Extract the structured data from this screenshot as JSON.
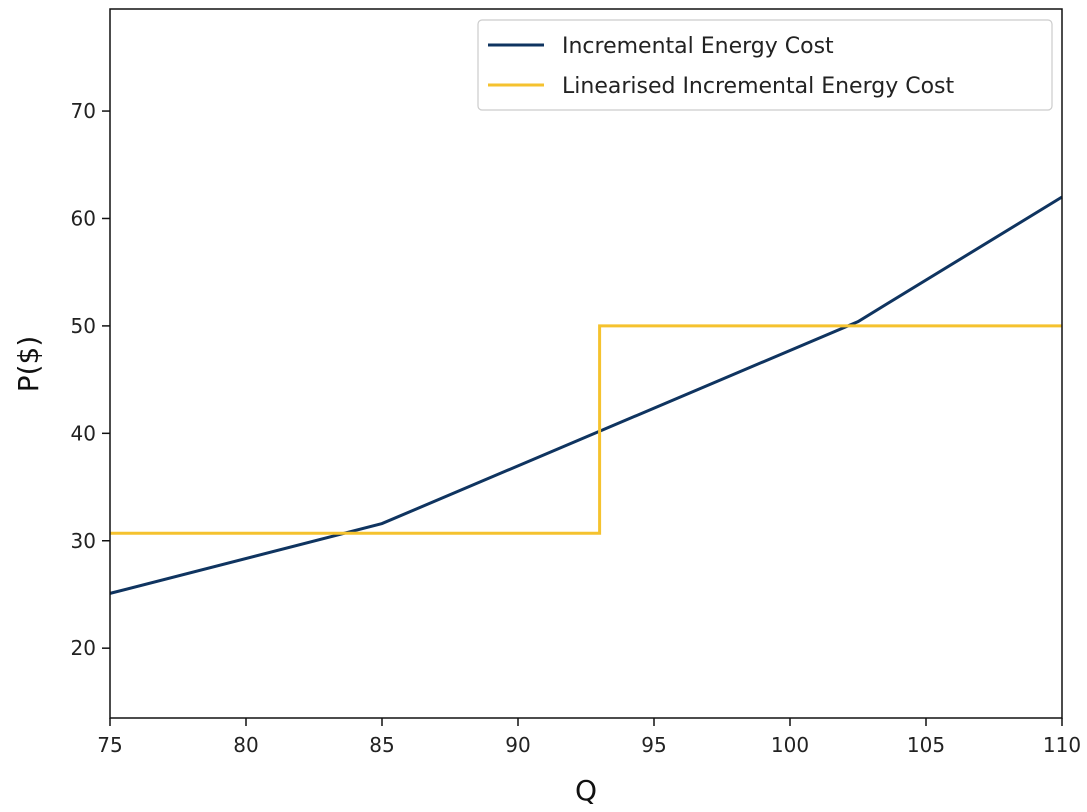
{
  "chart_data": {
    "type": "line",
    "title": "",
    "xlabel": "Q",
    "ylabel": "P($)",
    "xlim": [
      75,
      110
    ],
    "ylim": [
      13.5,
      79.5
    ],
    "xticks": [
      75,
      80,
      85,
      90,
      95,
      100,
      105,
      110
    ],
    "yticks": [
      20,
      30,
      40,
      50,
      60,
      70
    ],
    "grid": false,
    "legend_position": "top-right",
    "series": [
      {
        "name": "Incremental Energy Cost",
        "color": "#0f3460",
        "style": "line",
        "x": [
          75,
          85,
          102.5,
          110
        ],
        "y": [
          25.1,
          31.6,
          50.4,
          62.0
        ]
      },
      {
        "name": "Linearised Incremental Energy Cost",
        "color": "#f5c22e",
        "style": "step",
        "x": [
          75,
          93,
          93,
          110
        ],
        "y": [
          30.7,
          30.7,
          50.0,
          50.0
        ]
      }
    ]
  }
}
